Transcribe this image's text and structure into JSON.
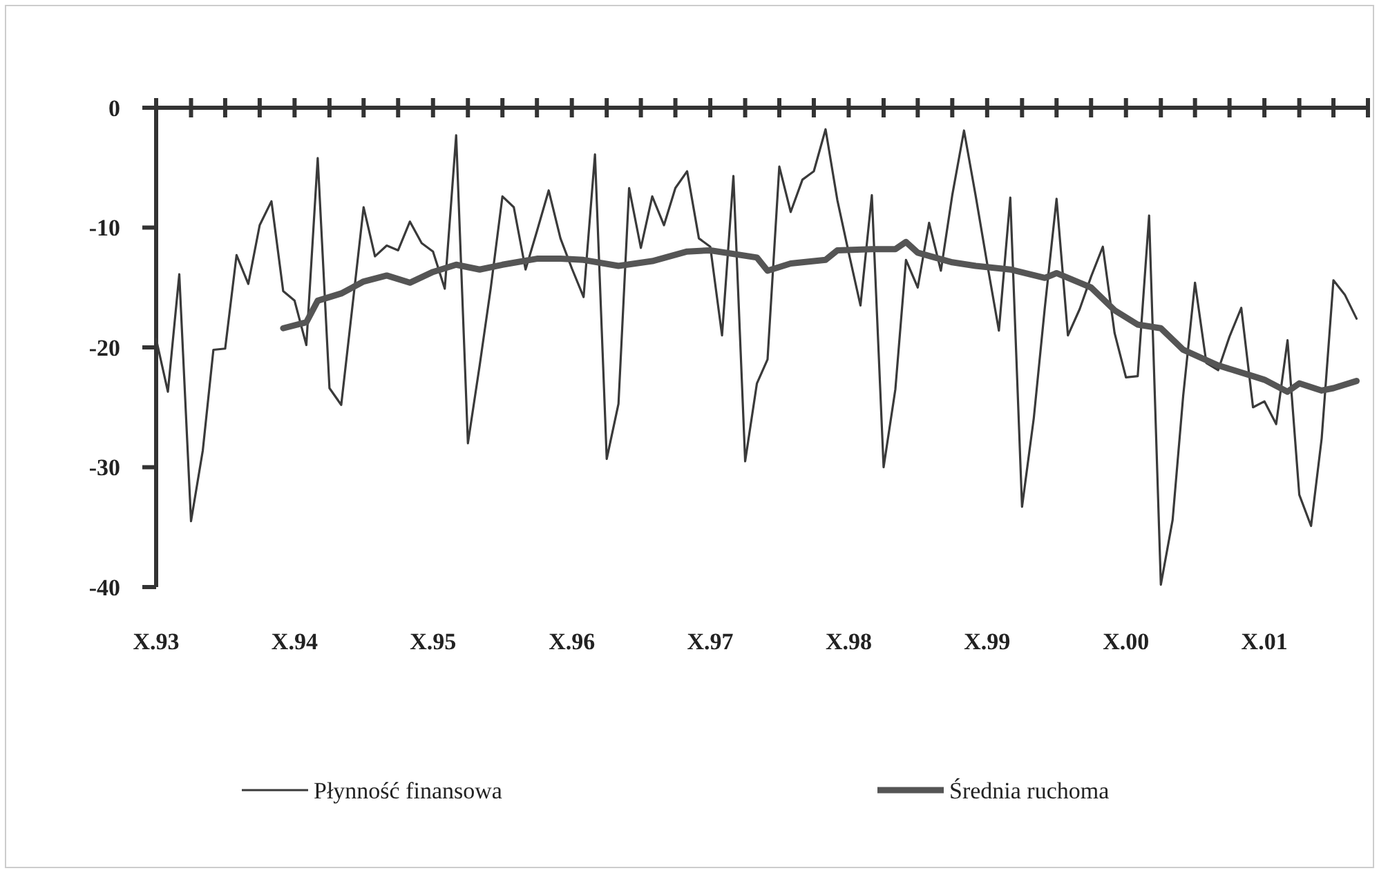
{
  "chart_data": {
    "type": "line",
    "legend": "bottom",
    "ylim": [
      -40,
      0
    ],
    "yticks": [
      0,
      -10,
      -20,
      -30,
      -40
    ],
    "xlim": [
      "1993-10",
      "2002-07"
    ],
    "xticks": [
      {
        "value": "1993-10",
        "label": "X.93"
      },
      {
        "value": "1994-01",
        "label": null
      },
      {
        "value": "1994-04",
        "label": null
      },
      {
        "value": "1994-07",
        "label": null
      },
      {
        "value": "1994-10",
        "label": "X.94"
      },
      {
        "value": "1995-01",
        "label": null
      },
      {
        "value": "1995-04",
        "label": null
      },
      {
        "value": "1995-07",
        "label": null
      },
      {
        "value": "1995-10",
        "label": "X.95"
      },
      {
        "value": "1996-01",
        "label": null
      },
      {
        "value": "1996-04",
        "label": null
      },
      {
        "value": "1996-07",
        "label": null
      },
      {
        "value": "1996-10",
        "label": "X.96"
      },
      {
        "value": "1997-01",
        "label": null
      },
      {
        "value": "1997-04",
        "label": null
      },
      {
        "value": "1997-07",
        "label": null
      },
      {
        "value": "1997-10",
        "label": "X.97"
      },
      {
        "value": "1998-01",
        "label": null
      },
      {
        "value": "1998-04",
        "label": null
      },
      {
        "value": "1998-07",
        "label": null
      },
      {
        "value": "1998-10",
        "label": "X.98"
      },
      {
        "value": "1999-01",
        "label": null
      },
      {
        "value": "1999-04",
        "label": null
      },
      {
        "value": "1999-07",
        "label": null
      },
      {
        "value": "1999-10",
        "label": "X.99"
      },
      {
        "value": "2000-01",
        "label": null
      },
      {
        "value": "2000-04",
        "label": null
      },
      {
        "value": "2000-07",
        "label": null
      },
      {
        "value": "2000-10",
        "label": "X.00"
      },
      {
        "value": "2001-01",
        "label": null
      },
      {
        "value": "2001-04",
        "label": null
      },
      {
        "value": "2001-07",
        "label": null
      },
      {
        "value": "2001-10",
        "label": "X.01"
      },
      {
        "value": "2002-01",
        "label": null
      },
      {
        "value": "2002-04",
        "label": null
      },
      {
        "value": "2002-07",
        "label": null
      }
    ],
    "series": [
      {
        "name": "Płynność finansowa",
        "color": "#3a3a3a",
        "x": [
          "1993-10",
          "1993-11",
          "1993-12",
          "1994-01",
          "1994-02",
          "1994-03",
          "1994-04",
          "1994-05",
          "1994-06",
          "1994-07",
          "1994-08",
          "1994-09",
          "1994-10",
          "1994-11",
          "1994-12",
          "1995-01",
          "1995-02",
          "1995-03",
          "1995-04",
          "1995-05",
          "1995-06",
          "1995-07",
          "1995-08",
          "1995-09",
          "1995-10",
          "1995-11",
          "1995-12",
          "1996-01",
          "1996-02",
          "1996-03",
          "1996-04",
          "1996-05",
          "1996-06",
          "1996-07",
          "1996-08",
          "1996-09",
          "1996-10",
          "1996-11",
          "1996-12",
          "1997-01",
          "1997-02",
          "1997-03",
          "1997-04",
          "1997-05",
          "1997-06",
          "1997-07",
          "1997-08",
          "1997-09",
          "1997-10",
          "1997-11",
          "1997-12",
          "1998-01",
          "1998-02",
          "1998-03",
          "1998-04",
          "1998-05",
          "1998-06",
          "1998-07",
          "1998-08",
          "1998-09",
          "1998-10",
          "1998-11",
          "1998-12",
          "1999-01",
          "1999-02",
          "1999-03",
          "1999-04",
          "1999-05",
          "1999-06",
          "1999-07",
          "1999-08",
          "1999-09",
          "1999-10",
          "1999-11",
          "1999-12",
          "2000-01",
          "2000-02",
          "2000-03",
          "2000-04",
          "2000-05",
          "2000-06",
          "2000-07",
          "2000-08",
          "2000-09",
          "2000-10",
          "2000-11",
          "2000-12",
          "2001-01",
          "2001-02",
          "2001-03",
          "2001-04",
          "2001-05",
          "2001-06",
          "2001-07",
          "2001-08",
          "2001-09",
          "2001-10",
          "2001-11",
          "2001-12",
          "2002-01",
          "2002-02",
          "2002-03",
          "2002-04",
          "2002-05",
          "2002-06"
        ],
        "values": [
          -19.3,
          -23.7,
          -13.9,
          -34.5,
          -28.6,
          -20.2,
          -20.1,
          -12.3,
          -14.7,
          -9.8,
          -7.8,
          -15.3,
          -16.1,
          -19.8,
          -4.2,
          -23.4,
          -24.8,
          -17.0,
          -8.3,
          -12.4,
          -11.5,
          -11.9,
          -9.5,
          -11.3,
          -12.0,
          -15.1,
          -2.3,
          -28.0,
          -21.5,
          -15.1,
          -7.4,
          -8.3,
          -13.5,
          -10.3,
          -6.9,
          -10.9,
          -13.4,
          -15.8,
          -3.9,
          -29.3,
          -24.7,
          -6.7,
          -11.7,
          -7.4,
          -9.8,
          -6.7,
          -5.3,
          -10.9,
          -11.6,
          -19.0,
          -5.7,
          -29.5,
          -23.0,
          -21.0,
          -4.9,
          -8.7,
          -6.0,
          -5.3,
          -1.8,
          -7.7,
          -12.1,
          -16.5,
          -7.3,
          -30.0,
          -23.5,
          -12.7,
          -15.0,
          -9.6,
          -13.6,
          -7.3,
          -1.9,
          -7.4,
          -13.0,
          -18.6,
          -7.5,
          -33.3,
          -25.9,
          -16.7,
          -7.6,
          -19.0,
          -16.8,
          -14.1,
          -11.6,
          -18.8,
          -22.5,
          -22.4,
          -9.0,
          -39.8,
          -34.4,
          -24.0,
          -14.6,
          -21.3,
          -21.9,
          -19.1,
          -16.7,
          -25.0,
          -24.5,
          -26.4,
          -19.4,
          -32.3,
          -34.9,
          -27.6,
          -14.4,
          -15.6,
          -17.6
        ]
      },
      {
        "name": "Średnia ruchoma",
        "color": "#555555",
        "x": [
          "1994-09",
          "1994-11",
          "1994-12",
          "1995-02",
          "1995-04",
          "1995-06",
          "1995-08",
          "1995-10",
          "1995-12",
          "1996-02",
          "1996-04",
          "1996-07",
          "1996-09",
          "1996-11",
          "1997-02",
          "1997-05",
          "1997-08",
          "1997-10",
          "1998-02",
          "1998-03",
          "1998-05",
          "1998-08",
          "1998-09",
          "1998-12",
          "1999-02",
          "1999-03",
          "1999-04",
          "1999-07",
          "1999-09",
          "1999-12",
          "2000-03",
          "2000-04",
          "2000-06",
          "2000-07",
          "2000-09",
          "2000-11",
          "2001-01",
          "2001-03",
          "2001-06",
          "2001-09",
          "2001-10",
          "2001-12",
          "2002-01",
          "2002-03",
          "2002-04",
          "2002-06"
        ],
        "values": [
          -18.4,
          -17.9,
          -16.1,
          -15.5,
          -14.5,
          -14.0,
          -14.6,
          -13.7,
          -13.1,
          -13.5,
          -13.1,
          -12.6,
          -12.6,
          -12.7,
          -13.2,
          -12.8,
          -12.0,
          -11.9,
          -12.5,
          -13.6,
          -13.0,
          -12.7,
          -11.9,
          -11.8,
          -11.8,
          -11.2,
          -12.1,
          -12.9,
          -13.2,
          -13.5,
          -14.2,
          -13.8,
          -14.6,
          -15.0,
          -16.9,
          -18.1,
          -18.4,
          -20.2,
          -21.5,
          -22.4,
          -22.7,
          -23.7,
          -23.0,
          -23.6,
          -23.4,
          -22.8
        ]
      }
    ]
  }
}
